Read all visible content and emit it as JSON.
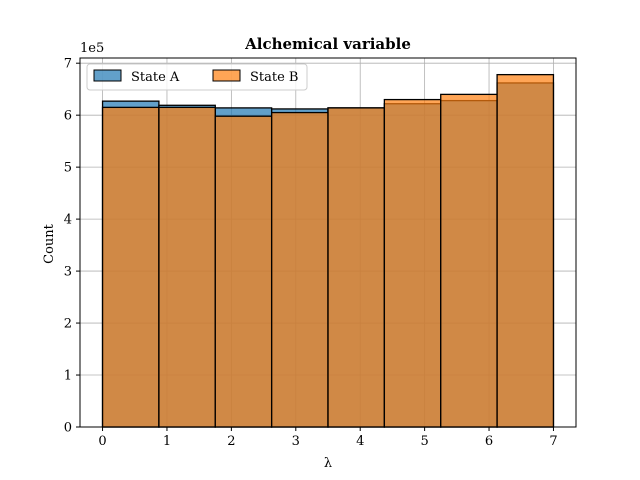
{
  "chart_data": {
    "type": "bar",
    "title": "Alchemical variable",
    "xlabel": "λ",
    "ylabel": "Count",
    "offset_text": "1e5",
    "xlim": [
      -0.35,
      7.35
    ],
    "ylim": [
      0,
      7.1
    ],
    "xticks": [
      "0",
      "1",
      "2",
      "3",
      "4",
      "5",
      "6",
      "7"
    ],
    "yticks": [
      "0",
      "1",
      "2",
      "3",
      "4",
      "5",
      "6",
      "7"
    ],
    "bin_edges": [
      0,
      0.875,
      1.75,
      2.625,
      3.5,
      4.375,
      5.25,
      6.125,
      7
    ],
    "grid": true,
    "legend_position": "top-left",
    "series": [
      {
        "name": "State A",
        "color": "#1f77b4",
        "values": [
          6.27,
          6.19,
          6.14,
          6.12,
          6.14,
          6.22,
          6.28,
          6.62
        ]
      },
      {
        "name": "State B",
        "color": "#ff7f0e",
        "values": [
          6.15,
          6.15,
          5.98,
          6.05,
          6.14,
          6.3,
          6.4,
          6.78
        ]
      }
    ]
  }
}
